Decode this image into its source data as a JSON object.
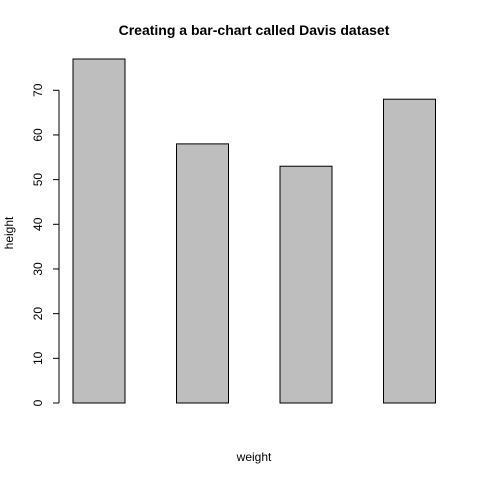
{
  "chart_data": {
    "type": "bar",
    "title": "Creating a bar-chart called Davis dataset",
    "xlabel": "weight",
    "ylabel": "height",
    "categories": [
      "",
      "",
      "",
      ""
    ],
    "values": [
      77,
      58,
      53,
      68
    ],
    "ylim": [
      0,
      77
    ],
    "yticks": [
      0,
      10,
      20,
      30,
      40,
      50,
      60,
      70
    ],
    "grid": false,
    "legend": "none",
    "colors": {
      "bar_fill": "#bebebe",
      "bar_stroke": "#000000",
      "background": "#ffffff",
      "axis": "#000000"
    }
  }
}
